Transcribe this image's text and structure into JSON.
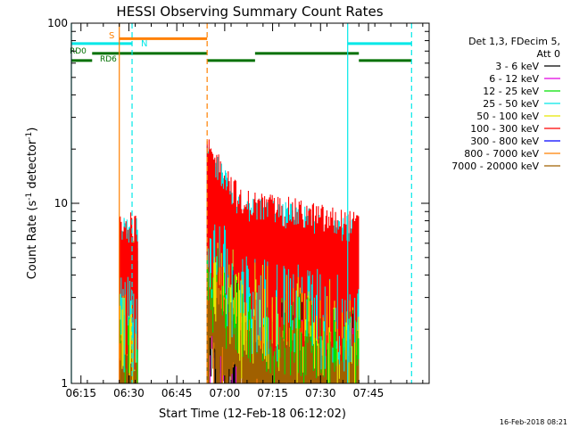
{
  "chart_data": {
    "type": "line",
    "title": "HESSI Observing Summary Count Rates",
    "xlabel": "Start Time (12-Feb-18 06:12:02)",
    "ylabel": "Count Rate (s⁻¹ detector⁻¹)",
    "ylabel_main": "Count Rate (s",
    "ylabel_sup1": "-1",
    "ylabel_mid": " detector",
    "ylabel_sup2": "-1",
    "ylabel_end": ")",
    "yscale": "log",
    "ylim": [
      1,
      100
    ],
    "xlim_minutes": [
      0,
      112
    ],
    "x_tick_labels": [
      "06:15",
      "06:30",
      "06:45",
      "07:00",
      "07:15",
      "07:30",
      "07:45"
    ],
    "x_ticks_minutes": [
      3,
      18,
      33,
      48,
      63,
      78,
      93
    ],
    "y_tick_labels": [
      "1",
      "10",
      "100"
    ],
    "y_ticks": [
      1,
      10,
      100
    ],
    "legend_position": "right",
    "legend_header": [
      "Det 1,3, FDecim 5,",
      "Att 0"
    ],
    "series": [
      {
        "name": "3 - 6 keV",
        "color": "#000000"
      },
      {
        "name": "6 - 12 keV",
        "color": "#e000e0"
      },
      {
        "name": "12 - 25 keV",
        "color": "#00e000"
      },
      {
        "name": "25 - 50 keV",
        "color": "#00e8e8"
      },
      {
        "name": "50 - 100 keV",
        "color": "#e8e800"
      },
      {
        "name": "100 - 300 keV",
        "color": "#ff0000"
      },
      {
        "name": "300 - 800 keV",
        "color": "#0000ff"
      },
      {
        "name": "800 - 7000 keV",
        "color": "#ff8000"
      },
      {
        "name": "7000 - 20000 keV",
        "color": "#a06000"
      }
    ],
    "data_intervals_minutes": [
      [
        15.0,
        21.0
      ],
      [
        42.5,
        90.0
      ]
    ],
    "flag_annotations": [
      {
        "label": "S",
        "color": "#ff8000",
        "level": 82,
        "segments": [
          [
            15.0,
            42.5
          ]
        ]
      },
      {
        "label": "N",
        "color": "#00e8e8",
        "level": 77,
        "segments": [
          [
            0,
            19.0
          ],
          [
            86.5,
            106.5
          ]
        ]
      },
      {
        "label": "RD0",
        "color": "#007000",
        "level": 68,
        "segments": [
          [
            6.5,
            42.5
          ],
          [
            57.5,
            90.0
          ]
        ]
      },
      {
        "label": "RD6",
        "color": "#007000",
        "level": 62,
        "segments": [
          [
            0,
            6.5
          ],
          [
            42.5,
            57.5
          ],
          [
            90.0,
            106.5
          ]
        ]
      }
    ],
    "vertical_markers": [
      {
        "color": "#00e8e8",
        "style": "solid",
        "x": 0
      },
      {
        "color": "#ff8000",
        "style": "solid",
        "x": 15.0
      },
      {
        "color": "#00e8e8",
        "style": "dashed",
        "x": 19.0
      },
      {
        "color": "#ff8000",
        "style": "dashed",
        "x": 42.5
      },
      {
        "color": "#00e8e8",
        "style": "solid",
        "x": 86.5
      },
      {
        "color": "#00e8e8",
        "style": "dashed",
        "x": 106.5
      }
    ]
  },
  "footer_timestamp": "16-Feb-2018 08:21"
}
